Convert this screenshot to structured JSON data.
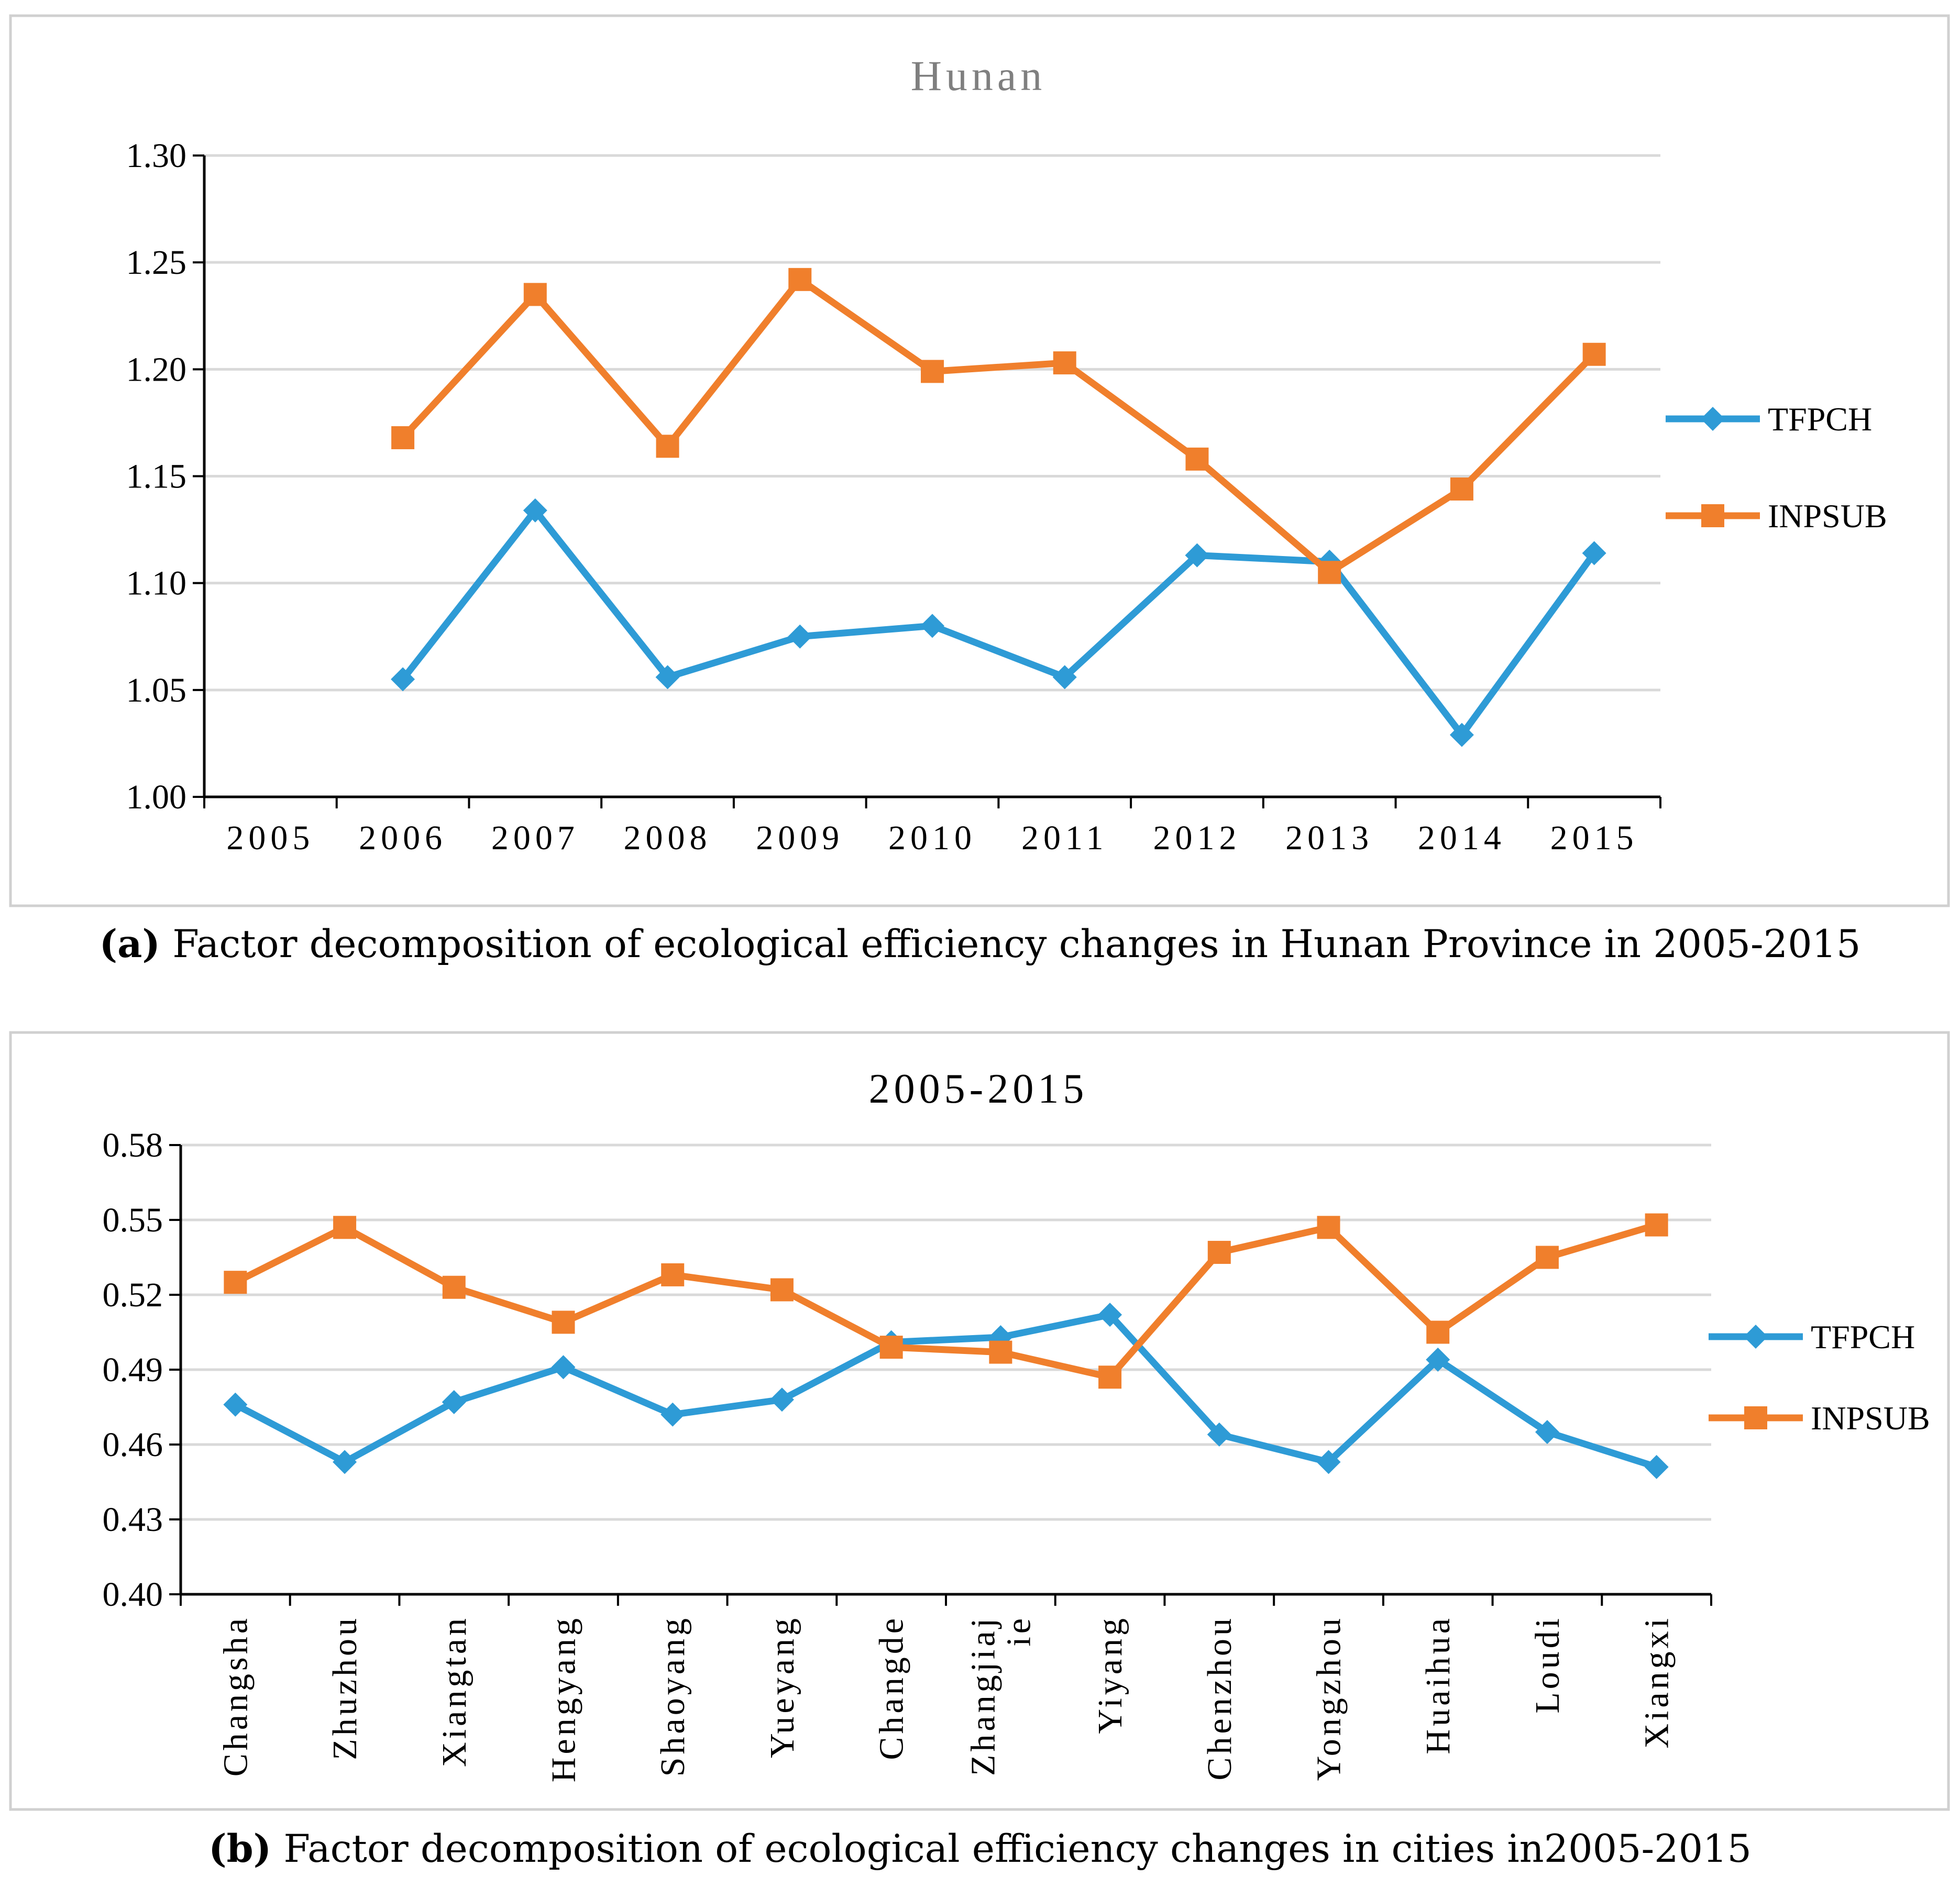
{
  "chart_data": [
    {
      "type": "line",
      "title": "Hunan",
      "caption_label": "(a)",
      "caption_text": "Factor decomposition of ecological efficiency changes in Hunan Province in 2005-2015",
      "categories": [
        "2005",
        "2006",
        "2007",
        "2008",
        "2009",
        "2010",
        "2011",
        "2012",
        "2013",
        "2014",
        "2015"
      ],
      "ylim": [
        1.0,
        1.3
      ],
      "yticks": [
        "1.00",
        "1.05",
        "1.10",
        "1.15",
        "1.20",
        "1.25",
        "1.30"
      ],
      "series": [
        {
          "name": "TFPCH",
          "color": "#2E9BD6",
          "marker": "diamond",
          "values": [
            null,
            1.055,
            1.134,
            1.056,
            1.075,
            1.08,
            1.056,
            1.113,
            1.11,
            1.029,
            1.114
          ]
        },
        {
          "name": "INPSUB",
          "color": "#F07F2C",
          "marker": "square",
          "values": [
            null,
            1.168,
            1.235,
            1.164,
            1.242,
            1.199,
            1.203,
            1.158,
            1.105,
            1.144,
            1.207
          ]
        }
      ]
    },
    {
      "type": "line",
      "title": "2005-2015",
      "caption_label": "(b)",
      "caption_text": "Factor decomposition of ecological efficiency changes in cities in2005-2015",
      "categories": [
        "Changsha",
        "Zhuzhou",
        "Xiangtan",
        "Hengyang",
        "Shaoyang",
        "Yueyang",
        "Changde",
        "Zhangjiajie",
        "Yiyang",
        "Chenzhou",
        "Yongzhou",
        "Huaihua",
        "Loudi",
        "Xiangxi"
      ],
      "category_lines": [
        [
          "Changsha"
        ],
        [
          "Zhuzhou"
        ],
        [
          "Xiangtan"
        ],
        [
          "Hengyang"
        ],
        [
          "Shaoyang"
        ],
        [
          "Yueyang"
        ],
        [
          "Changde"
        ],
        [
          "Zhangjiaj",
          "ie"
        ],
        [
          "Yiyang"
        ],
        [
          "Chenzhou"
        ],
        [
          "Yongzhou"
        ],
        [
          "Huaihua"
        ],
        [
          "Loudi"
        ],
        [
          "Xiangxi"
        ]
      ],
      "ylim": [
        0.4,
        0.58
      ],
      "yticks": [
        "0.40",
        "0.43",
        "0.46",
        "0.49",
        "0.52",
        "0.55",
        "0.58"
      ],
      "series": [
        {
          "name": "TFPCH",
          "color": "#2E9BD6",
          "marker": "diamond",
          "values": [
            0.476,
            0.453,
            0.477,
            0.491,
            0.472,
            0.478,
            0.501,
            0.503,
            0.512,
            0.464,
            0.453,
            0.494,
            0.465,
            0.451
          ]
        },
        {
          "name": "INPSUB",
          "color": "#F07F2C",
          "marker": "square",
          "values": [
            0.525,
            0.547,
            0.523,
            0.509,
            0.528,
            0.522,
            0.499,
            0.497,
            0.487,
            0.537,
            0.547,
            0.505,
            0.535,
            0.548
          ]
        }
      ]
    }
  ]
}
